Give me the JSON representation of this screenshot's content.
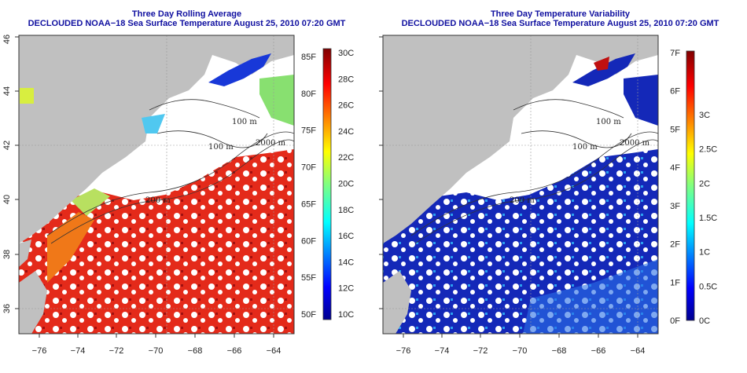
{
  "panels": [
    {
      "id": "left",
      "title": "Three Day Rolling Average",
      "subtitle": "DECLOUDED NOAA−18 Sea Surface Temperature August 25, 2010 07:20 GMT",
      "colorbar_f": [
        "50F",
        "55F",
        "60F",
        "65F",
        "70F",
        "75F",
        "80F",
        "85F"
      ],
      "colorbar_c": [
        "10C",
        "12C",
        "14C",
        "16C",
        "18C",
        "20C",
        "22C",
        "24C",
        "26C",
        "28C",
        "30C"
      ]
    },
    {
      "id": "right",
      "title": "Three Day Temperature Variability",
      "subtitle": "DECLOUDED NOAA−18 Sea Surface Temperature August 25, 2010 07:20 GMT",
      "colorbar_f": [
        "0F",
        "1F",
        "2F",
        "3F",
        "4F",
        "5F",
        "6F",
        "7F"
      ],
      "colorbar_c": [
        "0C",
        "0.5C",
        "1C",
        "1.5C",
        "2C",
        "2.5C",
        "3C"
      ]
    }
  ],
  "axes": {
    "x_ticks": [
      "−76",
      "−74",
      "−72",
      "−70",
      "−68",
      "−66",
      "−64"
    ],
    "y_ticks": [
      "36",
      "38",
      "40",
      "42",
      "44",
      "46"
    ]
  },
  "contour_labels": [
    "100 m",
    "2000 m",
    "100 m",
    "200 m",
    "200 m",
    "200"
  ],
  "colors": {
    "land": "#c0c0c0",
    "title": "#1010a0",
    "ocean_left": "#e8301c",
    "ocean_right": "#1020b0"
  }
}
